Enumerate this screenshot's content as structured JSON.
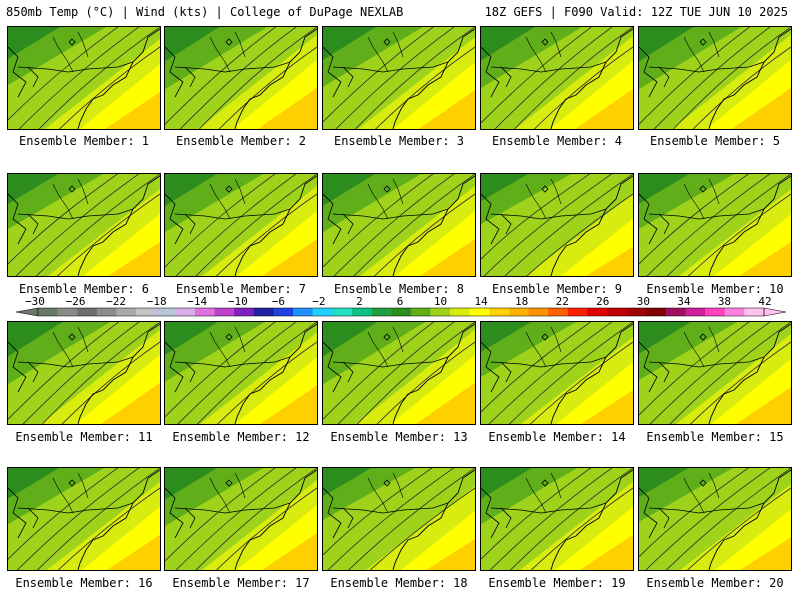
{
  "header": {
    "left": "850mb Temp (°C) | Wind (kts) | College of DuPage NEXLAB",
    "right": "18Z GEFS | F090 Valid: 12Z TUE JUN 10 2025"
  },
  "panels": [
    {
      "label": "Ensemble Member: 1",
      "warmth": 0.55
    },
    {
      "label": "Ensemble Member: 2",
      "warmth": 0.62
    },
    {
      "label": "Ensemble Member: 3",
      "warmth": 0.58
    },
    {
      "label": "Ensemble Member: 4",
      "warmth": 0.6
    },
    {
      "label": "Ensemble Member: 5",
      "warmth": 0.62
    },
    {
      "label": "Ensemble Member: 6",
      "warmth": 0.5
    },
    {
      "label": "Ensemble Member: 7",
      "warmth": 0.55
    },
    {
      "label": "Ensemble Member: 8",
      "warmth": 0.55
    },
    {
      "label": "Ensemble Member: 9",
      "warmth": 0.42
    },
    {
      "label": "Ensemble Member: 10",
      "warmth": 0.5
    },
    {
      "label": "Ensemble Member: 11",
      "warmth": 0.62
    },
    {
      "label": "Ensemble Member: 12",
      "warmth": 0.58
    },
    {
      "label": "Ensemble Member: 13",
      "warmth": 0.62
    },
    {
      "label": "Ensemble Member: 14",
      "warmth": 0.5
    },
    {
      "label": "Ensemble Member: 15",
      "warmth": 0.55
    },
    {
      "label": "Ensemble Member: 16",
      "warmth": 0.52
    },
    {
      "label": "Ensemble Member: 17",
      "warmth": 0.55
    },
    {
      "label": "Ensemble Member: 18",
      "warmth": 0.45
    },
    {
      "label": "Ensemble Member: 19",
      "warmth": 0.52
    },
    {
      "label": "Ensemble Member: 20",
      "warmth": 0.48
    }
  ],
  "colorbar": {
    "labels": [
      "−30",
      "−26",
      "−22",
      "−18",
      "−14",
      "−10",
      "−6",
      "−2",
      "2",
      "6",
      "10",
      "14",
      "18",
      "22",
      "26",
      "30",
      "34",
      "38",
      "42"
    ],
    "colors": [
      "#6a7a6a",
      "#8a8a8a",
      "#6e6e6e",
      "#8c8c8c",
      "#a8a8a8",
      "#c4c4c4",
      "#b8c4d8",
      "#d8b0e8",
      "#e070e0",
      "#c040d0",
      "#8020c0",
      "#2020a0",
      "#2040e0",
      "#2090ff",
      "#20d0ff",
      "#20e0c0",
      "#10c080",
      "#20a040",
      "#2d8c1e",
      "#5fae1a",
      "#9fd21a",
      "#d8ec10",
      "#ffff00",
      "#ffd000",
      "#ffb000",
      "#ff9000",
      "#ff6000",
      "#ff2000",
      "#e00000",
      "#c00000",
      "#a00000",
      "#800000",
      "#a01060",
      "#d020a0",
      "#ff40c0",
      "#ff80e0",
      "#ffc0f0"
    ]
  }
}
